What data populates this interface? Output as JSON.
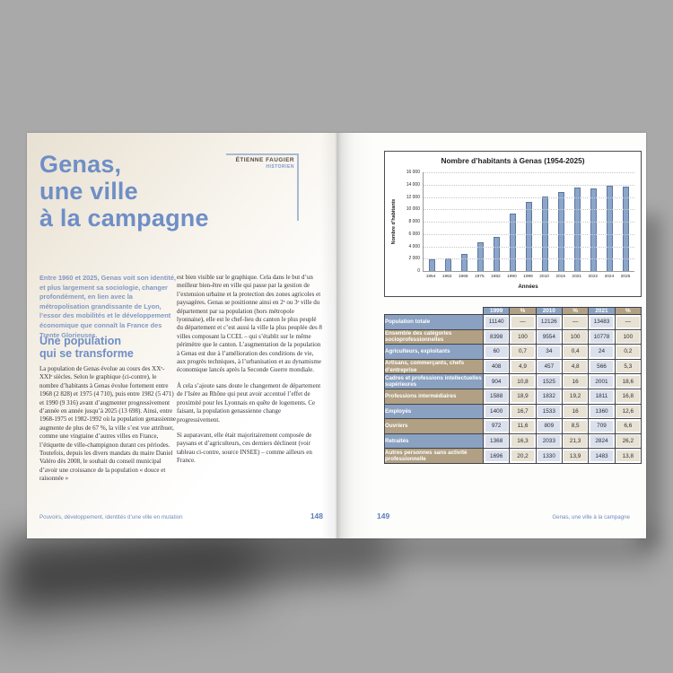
{
  "book": {
    "left_page": {
      "title_lines": [
        "Genas,",
        "une ville",
        "à la campagne"
      ],
      "author": {
        "name": "ÉTIENNE FAUGIER",
        "role": "HISTORIEN"
      },
      "intro": "Entre 1960 et 2025, Genas voit son identité, et plus largement sa sociologie, changer profondément, en lien avec la métropolisation grandissante de Lyon, l’essor des mobilités et le développement économique que connaît la France des Trente Glorieuses.",
      "section_heading_lines": [
        "Une population",
        "qui se transforme"
      ],
      "column1_paragraphs": [
        "La population de Genas évolue au cours des XXᵉ-XXIᵉ siècles. Selon le graphique (ci-contre), le nombre d’habitants à Genas évolue fortement entre 1968 (2 828) et 1975 (4 710), puis entre 1982 (5 471) et 1990 (9 316) avant d’augmenter progressivement d’année en année jusqu’à 2025 (13 698). Ainsi, entre 1968-1975 et 1982-1992 où la population genassienne augmente de plus de 67 %, la ville s’est vue attribuer, comme une vingtaine d’autres villes en France, l’étiquette de ville-champignon durant ces périodes. Toutefois, depuis les divers mandats du maire Daniel Valéro dès 2008, le souhait du conseil municipal d’avoir une croissance de la population « douce et raisonnée »"
      ],
      "column2_paragraphs": [
        "est bien visible sur le graphique. Cela dans le but d’un meilleur bien-être en ville qui passe par la gestion de l’extension urbaine et la protection des zones agricoles et paysagères. Genas se positionne ainsi en 2ᵉ ou 3ᵉ ville du département par sa population (hors métropole lyonnaise), elle est le chef-lieu du canton le plus peuplé du département et c’est aussi la ville la plus peuplée des 8 villes composant la CCEL – qui s’établit sur le même périmètre que le canton. L’augmentation de la population à Genas est due à l’amélioration des conditions de vie, aux progrès techniques, à l’urbanisation et au dynamisme économique lancés après la Seconde Guerre mondiale.",
        "À cela s’ajoute sans doute le changement de département de l’Isère au Rhône qui peut avoir accentué l’effet de proximité pour les Lyonnais en quête de logements. Ce faisant, la population genassienne change progressivement.",
        "Si auparavant, elle était majoritairement composée de paysans et d’agriculteurs, ces derniers déclinent (voir tableau ci-contre, source INSEE) – comme ailleurs en France."
      ],
      "footer": {
        "text": "Pouvoirs, développement, identités d’une ville en mutation",
        "page_number": "148"
      }
    },
    "right_page": {
      "footer": {
        "page_number": "149",
        "text": "Genas, une ville à la campagne"
      },
      "table": {
        "header": [
          "",
          "1999",
          "%",
          "2010",
          "%",
          "2021",
          "%"
        ],
        "rows": [
          {
            "label": "Population totale",
            "values": [
              "11140",
              "—",
              "12126",
              "—",
              "13483",
              "—"
            ]
          },
          {
            "label": "Ensemble des catégories socioprofessionnelles",
            "values": [
              "8398",
              "100",
              "9554",
              "100",
              "10778",
              "100"
            ]
          },
          {
            "label": "Agriculteurs, exploitants",
            "values": [
              "60",
              "0,7",
              "34",
              "0,4",
              "24",
              "0,2"
            ]
          },
          {
            "label": "Artisans, commerçants, chefs d’entreprise",
            "values": [
              "408",
              "4,9",
              "457",
              "4,8",
              "566",
              "5,3"
            ]
          },
          {
            "label": "Cadres et professions intellectuelles supérieures",
            "values": [
              "904",
              "10,8",
              "1525",
              "16",
              "2001",
              "18,6"
            ]
          },
          {
            "label": "Professions intermédiaires",
            "values": [
              "1588",
              "18,9",
              "1832",
              "19,2",
              "1811",
              "16,8"
            ]
          },
          {
            "label": "Employés",
            "values": [
              "1400",
              "16,7",
              "1533",
              "16",
              "1360",
              "12,6"
            ]
          },
          {
            "label": "Ouvriers",
            "values": [
              "972",
              "11,6",
              "809",
              "8,5",
              "709",
              "6,6"
            ]
          },
          {
            "label": "Retraités",
            "values": [
              "1368",
              "16,3",
              "2033",
              "21,3",
              "2824",
              "26,2"
            ]
          },
          {
            "label": "Autres personnes sans activité professionnelle",
            "values": [
              "1696",
              "20,2",
              "1330",
              "13,9",
              "1483",
              "13,8"
            ]
          }
        ],
        "colors": {
          "header_blue": "#8aa1c1",
          "header_tan": "#b1a083",
          "cell_blue": "#dae1ed",
          "cell_tan": "#e8e2d4"
        }
      }
    }
  },
  "chart_data": {
    "type": "bar",
    "title": "Nombre d’habitants à Genas (1954-2025)",
    "xlabel": "Années",
    "ylabel": "Nombre d’habitants",
    "categories": [
      "1954",
      "1962",
      "1968",
      "1975",
      "1982",
      "1990",
      "1999",
      "2010",
      "2015",
      "2021",
      "2022",
      "2024",
      "2025"
    ],
    "values": [
      1950,
      2080,
      2828,
      4710,
      5471,
      9316,
      11140,
      12126,
      12800,
      13483,
      13410,
      13850,
      13698
    ],
    "ylim": [
      0,
      16000
    ],
    "ytick_step": 2000,
    "ytick_labels": [
      "0",
      "2 000",
      "4 000",
      "6 000",
      "8 000",
      "10 000",
      "12 000",
      "14 000",
      "16 000"
    ],
    "grid": true,
    "legend": false,
    "bar_color": "#8ba6cb",
    "accent_blue": "#6e8ec6"
  }
}
